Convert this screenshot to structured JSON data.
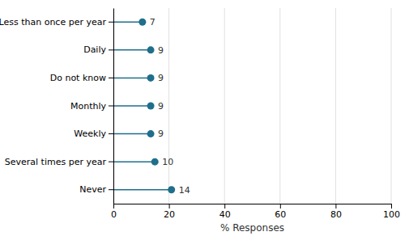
{
  "chart_data": {
    "type": "lollipop",
    "orientation": "horizontal",
    "categories": [
      "Less than once per year",
      "Daily",
      "Do not know",
      "Monthly",
      "Weekly",
      "Several times per year",
      "Never"
    ],
    "values": [
      10.45,
      13.43,
      13.43,
      13.43,
      13.43,
      14.93,
      20.9
    ],
    "counts": [
      7,
      9,
      9,
      9,
      9,
      10,
      14
    ],
    "color": "#1f6e8c",
    "x_label": "% Responses",
    "xlim": [
      0,
      100
    ],
    "xticks": [
      0,
      20,
      40,
      60,
      80,
      100
    ],
    "grid": true
  }
}
